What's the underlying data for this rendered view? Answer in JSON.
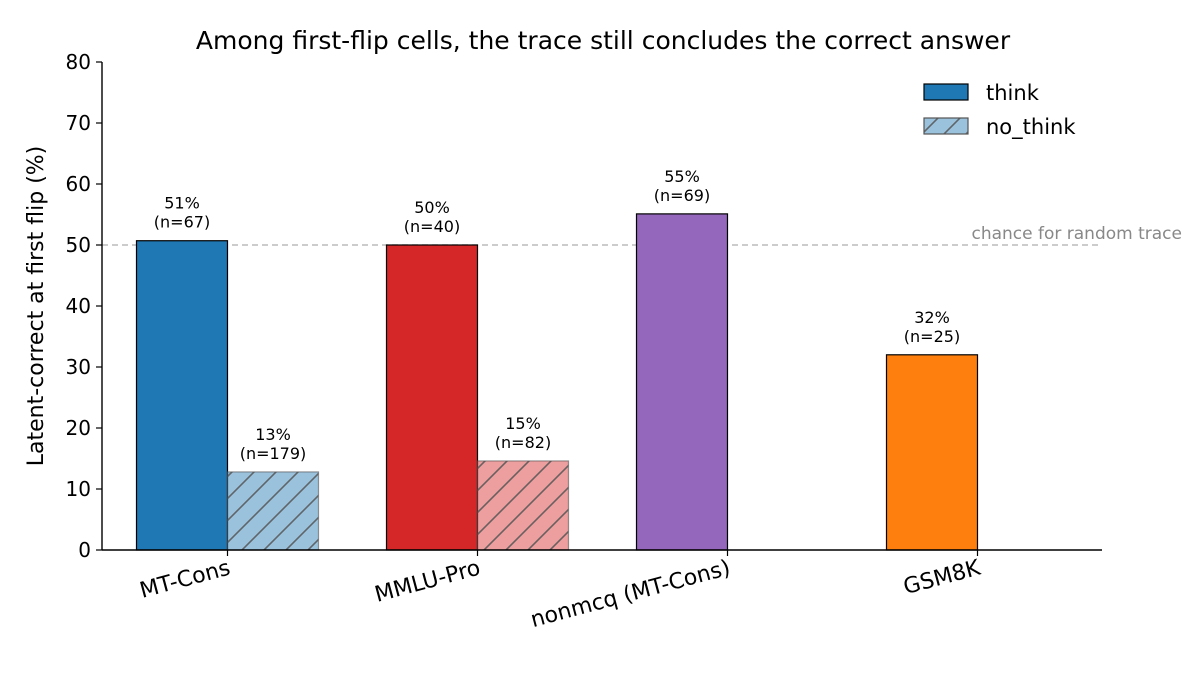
{
  "chart_data": {
    "type": "bar",
    "title": "Among first-flip cells, the trace still concludes the correct answer",
    "xlabel": "",
    "ylabel": "Latent-correct at first flip (%)",
    "ylim": [
      0,
      80
    ],
    "yticks": [
      0,
      10,
      20,
      30,
      40,
      50,
      60,
      70,
      80
    ],
    "grid": false,
    "legend_position": "top-right",
    "categories": [
      "MT-Cons",
      "MMLU-Pro",
      "nonmcq (MT-Cons)",
      "GSM8K"
    ],
    "category_colors": [
      "#1f77b4",
      "#d62728",
      "#9467bd",
      "#ff7f0e"
    ],
    "series": [
      {
        "name": "think",
        "hatched": false,
        "values": [
          50.7,
          50.0,
          55.1,
          32.0
        ],
        "labels": [
          [
            "51%",
            "(n=67)"
          ],
          [
            "50%",
            "(n=40)"
          ],
          [
            "55%",
            "(n=69)"
          ],
          [
            "32%",
            "(n=25)"
          ]
        ]
      },
      {
        "name": "no_think",
        "hatched": true,
        "values": [
          12.8,
          14.6,
          null,
          null
        ],
        "labels": [
          [
            "13%",
            "(n=179)"
          ],
          [
            "15%",
            "(n=82)"
          ],
          null,
          null
        ]
      }
    ],
    "legend": [
      {
        "label": "think",
        "color": "#1f77b4",
        "hatched": false
      },
      {
        "label": "no_think",
        "color": "#1f77b4",
        "hatched": true
      }
    ],
    "reference_line": {
      "value": 50,
      "label": "chance for random trace",
      "color": "#bbbbbb"
    }
  }
}
